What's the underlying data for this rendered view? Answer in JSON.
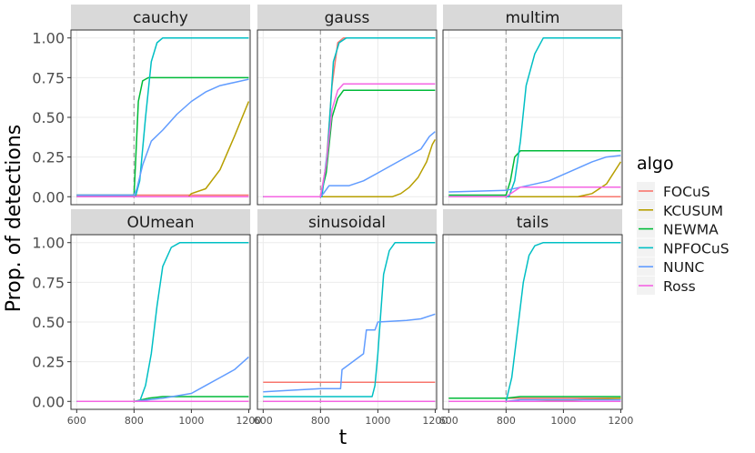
{
  "chart_data": {
    "type": "line",
    "ylabel": "Prop. of detections",
    "xlabel": "t",
    "xlim": [
      580,
      1205
    ],
    "ylim": [
      -0.05,
      1.05
    ],
    "xticks": [
      600,
      800,
      1000,
      1200
    ],
    "yticks": [
      0.0,
      0.25,
      0.5,
      0.75,
      1.0
    ],
    "ytick_labels": [
      "0.00",
      "0.25",
      "0.50",
      "0.75",
      "1.00"
    ],
    "changepoint": 800,
    "legend": {
      "title": "algo",
      "entries": [
        {
          "name": "FOCuS",
          "color": "#F8766D"
        },
        {
          "name": "KCUSUM",
          "color": "#B79F00"
        },
        {
          "name": "NEWMA",
          "color": "#00BA38"
        },
        {
          "name": "NPFOCuS",
          "color": "#00BFC4"
        },
        {
          "name": "NUNC",
          "color": "#619CFF"
        },
        {
          "name": "Ross",
          "color": "#F564E3"
        }
      ]
    },
    "panels": [
      {
        "title": "cauchy",
        "series": [
          {
            "name": "FOCuS",
            "x": [
              600,
              1200
            ],
            "y": [
              0.01,
              0.01
            ]
          },
          {
            "name": "KCUSUM",
            "x": [
              600,
              990,
              1000,
              1050,
              1100,
              1150,
              1200
            ],
            "y": [
              0,
              0,
              0.02,
              0.05,
              0.17,
              0.38,
              0.6
            ]
          },
          {
            "name": "NEWMA",
            "x": [
              600,
              800,
              805,
              815,
              830,
              850,
              1200
            ],
            "y": [
              0.01,
              0.01,
              0.2,
              0.6,
              0.73,
              0.75,
              0.75
            ]
          },
          {
            "name": "NPFOCuS",
            "x": [
              600,
              805,
              820,
              840,
              860,
              880,
              900,
              1200
            ],
            "y": [
              0,
              0,
              0.1,
              0.5,
              0.85,
              0.97,
              1.0,
              1.0
            ]
          },
          {
            "name": "NUNC",
            "x": [
              600,
              800,
              810,
              830,
              860,
              900,
              950,
              1000,
              1050,
              1100,
              1150,
              1200
            ],
            "y": [
              0.01,
              0.01,
              0.05,
              0.2,
              0.35,
              0.42,
              0.52,
              0.6,
              0.66,
              0.7,
              0.72,
              0.74
            ]
          },
          {
            "name": "Ross",
            "x": [
              600,
              1200
            ],
            "y": [
              0.0,
              0.0
            ]
          }
        ]
      },
      {
        "title": "gauss",
        "series": [
          {
            "name": "FOCuS",
            "x": [
              600,
              800,
              820,
              840,
              860,
              880,
              1200
            ],
            "y": [
              0,
              0,
              0.2,
              0.7,
              0.97,
              1.0,
              1.0
            ]
          },
          {
            "name": "KCUSUM",
            "x": [
              600,
              1050,
              1080,
              1110,
              1140,
              1170,
              1190,
              1200
            ],
            "y": [
              0,
              0,
              0.02,
              0.06,
              0.12,
              0.22,
              0.33,
              0.36
            ]
          },
          {
            "name": "NEWMA",
            "x": [
              600,
              800,
              820,
              840,
              860,
              880,
              1200
            ],
            "y": [
              0,
              0,
              0.15,
              0.5,
              0.62,
              0.67,
              0.67
            ]
          },
          {
            "name": "NPFOCuS",
            "x": [
              600,
              805,
              825,
              845,
              865,
              890,
              1200
            ],
            "y": [
              0,
              0,
              0.3,
              0.85,
              0.97,
              1.0,
              1.0
            ]
          },
          {
            "name": "NUNC",
            "x": [
              600,
              800,
              810,
              830,
              900,
              950,
              1000,
              1050,
              1100,
              1150,
              1180,
              1200
            ],
            "y": [
              0,
              0,
              0.02,
              0.07,
              0.07,
              0.1,
              0.15,
              0.2,
              0.25,
              0.3,
              0.38,
              0.41
            ]
          },
          {
            "name": "Ross",
            "x": [
              600,
              800,
              820,
              840,
              860,
              880,
              1200
            ],
            "y": [
              0,
              0,
              0.2,
              0.55,
              0.67,
              0.71,
              0.71
            ]
          }
        ]
      },
      {
        "title": "multim",
        "series": [
          {
            "name": "FOCuS",
            "x": [
              600,
              1200
            ],
            "y": [
              0.0,
              0.0
            ]
          },
          {
            "name": "KCUSUM",
            "x": [
              600,
              1050,
              1100,
              1150,
              1200
            ],
            "y": [
              0,
              0,
              0.02,
              0.08,
              0.22
            ]
          },
          {
            "name": "NEWMA",
            "x": [
              600,
              800,
              815,
              830,
              850,
              1200
            ],
            "y": [
              0.01,
              0.01,
              0.1,
              0.25,
              0.29,
              0.29
            ]
          },
          {
            "name": "NPFOCuS",
            "x": [
              600,
              810,
              830,
              850,
              870,
              900,
              930,
              1200
            ],
            "y": [
              0,
              0,
              0.1,
              0.35,
              0.7,
              0.9,
              1.0,
              1.0
            ]
          },
          {
            "name": "NUNC",
            "x": [
              600,
              800,
              850,
              900,
              950,
              1000,
              1050,
              1100,
              1150,
              1200
            ],
            "y": [
              0.03,
              0.04,
              0.06,
              0.08,
              0.1,
              0.14,
              0.18,
              0.22,
              0.25,
              0.26
            ]
          },
          {
            "name": "Ross",
            "x": [
              600,
              800,
              850,
              1200
            ],
            "y": [
              0.0,
              0.0,
              0.06,
              0.06
            ]
          }
        ]
      },
      {
        "title": "OUmean",
        "series": [
          {
            "name": "FOCuS",
            "x": [
              600,
              1200
            ],
            "y": [
              0.0,
              0.0
            ]
          },
          {
            "name": "KCUSUM",
            "x": [
              600,
              1200
            ],
            "y": [
              0.0,
              0.0
            ]
          },
          {
            "name": "NEWMA",
            "x": [
              600,
              800,
              850,
              900,
              1200
            ],
            "y": [
              0,
              0,
              0.02,
              0.03,
              0.03
            ]
          },
          {
            "name": "NPFOCuS",
            "x": [
              600,
              820,
              840,
              860,
              880,
              900,
              930,
              960,
              1200
            ],
            "y": [
              0,
              0,
              0.1,
              0.3,
              0.6,
              0.85,
              0.97,
              1.0,
              1.0
            ]
          },
          {
            "name": "NUNC",
            "x": [
              600,
              800,
              850,
              900,
              1000,
              1050,
              1100,
              1150,
              1200
            ],
            "y": [
              0,
              0,
              0.01,
              0.02,
              0.05,
              0.1,
              0.15,
              0.2,
              0.28
            ]
          },
          {
            "name": "Ross",
            "x": [
              600,
              1200
            ],
            "y": [
              0.0,
              0.0
            ]
          }
        ]
      },
      {
        "title": "sinusoidal",
        "series": [
          {
            "name": "FOCuS",
            "x": [
              600,
              1200
            ],
            "y": [
              0.12,
              0.12
            ]
          },
          {
            "name": "KCUSUM",
            "x": [
              600,
              1200
            ],
            "y": [
              0.0,
              0.0
            ]
          },
          {
            "name": "NEWMA",
            "x": [
              600,
              1200
            ],
            "y": [
              0.0,
              0.0
            ]
          },
          {
            "name": "NPFOCuS",
            "x": [
              600,
              980,
              990,
              1000,
              1010,
              1020,
              1040,
              1060,
              1200
            ],
            "y": [
              0.03,
              0.03,
              0.1,
              0.3,
              0.55,
              0.8,
              0.95,
              1.0,
              1.0
            ]
          },
          {
            "name": "NUNC",
            "x": [
              600,
              800,
              870,
              875,
              950,
              960,
              990,
              1000,
              1100,
              1150,
              1200
            ],
            "y": [
              0.06,
              0.08,
              0.08,
              0.2,
              0.3,
              0.45,
              0.45,
              0.5,
              0.51,
              0.52,
              0.55
            ]
          },
          {
            "name": "Ross",
            "x": [
              600,
              1200
            ],
            "y": [
              0.0,
              0.0
            ]
          }
        ]
      },
      {
        "title": "tails",
        "series": [
          {
            "name": "FOCuS",
            "x": [
              600,
              1200
            ],
            "y": [
              0.02,
              0.02
            ]
          },
          {
            "name": "KCUSUM",
            "x": [
              600,
              900,
              1200
            ],
            "y": [
              0.0,
              0.0,
              0.02
            ]
          },
          {
            "name": "NEWMA",
            "x": [
              600,
              800,
              850,
              1200
            ],
            "y": [
              0.02,
              0.02,
              0.03,
              0.03
            ]
          },
          {
            "name": "NPFOCuS",
            "x": [
              600,
              800,
              820,
              840,
              860,
              880,
              900,
              930,
              1200
            ],
            "y": [
              0,
              0,
              0.15,
              0.45,
              0.75,
              0.92,
              0.98,
              1.0,
              1.0
            ]
          },
          {
            "name": "NUNC",
            "x": [
              600,
              800,
              850,
              1200
            ],
            "y": [
              0.0,
              0.0,
              0.01,
              0.01
            ]
          },
          {
            "name": "Ross",
            "x": [
              600,
              1200
            ],
            "y": [
              0.0,
              0.0
            ]
          }
        ]
      }
    ]
  }
}
